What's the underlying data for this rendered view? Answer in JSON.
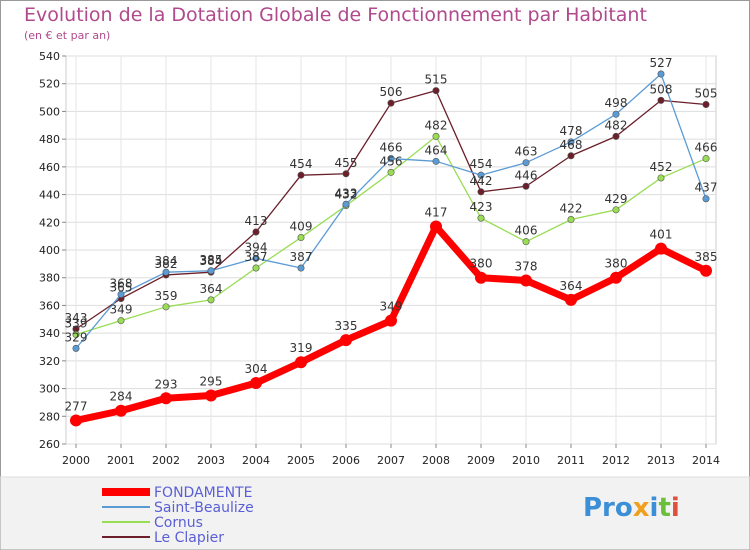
{
  "chart_data": {
    "type": "line",
    "title": "Evolution de la Dotation Globale de Fonctionnement par Habitant",
    "subtitle": "(en € et par an)",
    "x": [
      "2000",
      "2001",
      "2002",
      "2003",
      "2004",
      "2005",
      "2006",
      "2007",
      "2008",
      "2009",
      "2010",
      "2011",
      "2012",
      "2013",
      "2014"
    ],
    "ylim": [
      260,
      540
    ],
    "yticks": [
      260,
      280,
      300,
      320,
      340,
      360,
      380,
      400,
      420,
      440,
      460,
      480,
      500,
      520,
      540
    ],
    "grid": true,
    "legend_position": "bottom-left",
    "series": [
      {
        "name": "FONDAMENTE",
        "color": "#ff0000",
        "values": [
          277,
          284,
          293,
          295,
          304,
          319,
          335,
          349,
          417,
          380,
          378,
          364,
          380,
          401,
          385
        ]
      },
      {
        "name": "Saint-Beaulize",
        "color": "#5b9bd5",
        "values": [
          329,
          368,
          384,
          385,
          394,
          387,
          433,
          466,
          464,
          454,
          463,
          478,
          498,
          527,
          437
        ]
      },
      {
        "name": "Cornus",
        "color": "#99dd55",
        "values": [
          339,
          349,
          359,
          364,
          387,
          409,
          432,
          456,
          482,
          423,
          406,
          422,
          429,
          452,
          466
        ]
      },
      {
        "name": "Le Clapier",
        "color": "#6b1f2a",
        "values": [
          343,
          365,
          382,
          384,
          413,
          454,
          455,
          506,
          515,
          442,
          446,
          468,
          482,
          508,
          505
        ]
      }
    ]
  },
  "logo": {
    "text": "Proxiti"
  }
}
